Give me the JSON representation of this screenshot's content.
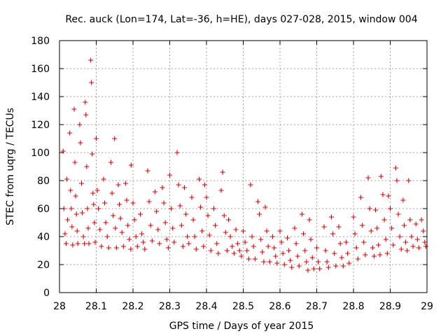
{
  "chart_data": {
    "type": "scatter",
    "title": "Rec. auck (Lon=174, Lat=-36, h=HE), days 027-028, 2015, window 004",
    "xlabel": "GPS time / Days of year 2015",
    "ylabel": "STEC from uqrg / TECUs",
    "xlim": [
      28,
      29
    ],
    "ylim": [
      0,
      180
    ],
    "xticks": [
      "28",
      "28.1",
      "28.2",
      "28.3",
      "28.4",
      "28.5",
      "28.6",
      "28.7",
      "28.8",
      "28.9",
      "29"
    ],
    "yticks": [
      "0",
      "20",
      "40",
      "60",
      "80",
      "100",
      "120",
      "140",
      "160",
      "180"
    ],
    "grid": true,
    "marker": "plus",
    "color": "#e00000",
    "points": [
      [
        28.01,
        101
      ],
      [
        28.012,
        60
      ],
      [
        28.015,
        42
      ],
      [
        28.018,
        35
      ],
      [
        28.02,
        81
      ],
      [
        28.022,
        52
      ],
      [
        28.028,
        114
      ],
      [
        28.03,
        73
      ],
      [
        28.032,
        60
      ],
      [
        28.034,
        47
      ],
      [
        28.036,
        34
      ],
      [
        28.04,
        131
      ],
      [
        28.042,
        93
      ],
      [
        28.044,
        69
      ],
      [
        28.046,
        56
      ],
      [
        28.048,
        44
      ],
      [
        28.05,
        35
      ],
      [
        28.055,
        120
      ],
      [
        28.057,
        107
      ],
      [
        28.06,
        78
      ],
      [
        28.062,
        57
      ],
      [
        28.065,
        40
      ],
      [
        28.068,
        35
      ],
      [
        28.07,
        136
      ],
      [
        28.072,
        127
      ],
      [
        28.074,
        90
      ],
      [
        28.076,
        60
      ],
      [
        28.078,
        46
      ],
      [
        28.08,
        35
      ],
      [
        28.085,
        166
      ],
      [
        28.087,
        150
      ],
      [
        28.089,
        99
      ],
      [
        28.091,
        71
      ],
      [
        28.093,
        63
      ],
      [
        28.095,
        50
      ],
      [
        28.097,
        36
      ],
      [
        28.1,
        110
      ],
      [
        28.103,
        73
      ],
      [
        28.106,
        60
      ],
      [
        28.11,
        45
      ],
      [
        28.114,
        33
      ],
      [
        28.12,
        81
      ],
      [
        28.123,
        64
      ],
      [
        28.126,
        50
      ],
      [
        28.13,
        40
      ],
      [
        28.134,
        32
      ],
      [
        28.14,
        93
      ],
      [
        28.143,
        71
      ],
      [
        28.146,
        55
      ],
      [
        28.15,
        110
      ],
      [
        28.152,
        46
      ],
      [
        28.155,
        32
      ],
      [
        28.16,
        77
      ],
      [
        28.163,
        63
      ],
      [
        28.166,
        53
      ],
      [
        28.17,
        43
      ],
      [
        28.174,
        33
      ],
      [
        28.18,
        78
      ],
      [
        28.183,
        66
      ],
      [
        28.186,
        48
      ],
      [
        28.19,
        38
      ],
      [
        28.194,
        31
      ],
      [
        28.195,
        91
      ],
      [
        28.2,
        64
      ],
      [
        28.204,
        52
      ],
      [
        28.208,
        40
      ],
      [
        28.212,
        33
      ],
      [
        28.22,
        56
      ],
      [
        28.224,
        42
      ],
      [
        28.228,
        36
      ],
      [
        28.232,
        31
      ],
      [
        28.24,
        87
      ],
      [
        28.244,
        65
      ],
      [
        28.248,
        48
      ],
      [
        28.252,
        37
      ],
      [
        28.26,
        72
      ],
      [
        28.264,
        58
      ],
      [
        28.268,
        45
      ],
      [
        28.272,
        35
      ],
      [
        28.28,
        75
      ],
      [
        28.284,
        64
      ],
      [
        28.288,
        50
      ],
      [
        28.292,
        38
      ],
      [
        28.296,
        32
      ],
      [
        28.3,
        84
      ],
      [
        28.304,
        60
      ],
      [
        28.308,
        46
      ],
      [
        28.312,
        36
      ],
      [
        28.32,
        100
      ],
      [
        28.324,
        77
      ],
      [
        28.328,
        62
      ],
      [
        28.332,
        48
      ],
      [
        28.336,
        33
      ],
      [
        28.34,
        75
      ],
      [
        28.344,
        56
      ],
      [
        28.348,
        40
      ],
      [
        28.352,
        35
      ],
      [
        28.36,
        68
      ],
      [
        28.364,
        52
      ],
      [
        28.368,
        40
      ],
      [
        28.372,
        31
      ],
      [
        28.38,
        81
      ],
      [
        28.384,
        61
      ],
      [
        28.388,
        44
      ],
      [
        28.392,
        33
      ],
      [
        28.395,
        77
      ],
      [
        28.4,
        68
      ],
      [
        28.404,
        55
      ],
      [
        28.408,
        41
      ],
      [
        28.412,
        30
      ],
      [
        28.42,
        60
      ],
      [
        28.424,
        48
      ],
      [
        28.428,
        35
      ],
      [
        28.432,
        28
      ],
      [
        28.44,
        73
      ],
      [
        28.444,
        86
      ],
      [
        28.448,
        55
      ],
      [
        28.452,
        43
      ],
      [
        28.456,
        30
      ],
      [
        28.46,
        52
      ],
      [
        28.465,
        40
      ],
      [
        28.47,
        33
      ],
      [
        28.475,
        28
      ],
      [
        28.48,
        45
      ],
      [
        28.485,
        35
      ],
      [
        28.49,
        30
      ],
      [
        28.495,
        26
      ],
      [
        28.5,
        44
      ],
      [
        28.505,
        36
      ],
      [
        28.51,
        30
      ],
      [
        28.515,
        24
      ],
      [
        28.52,
        77
      ],
      [
        28.524,
        40
      ],
      [
        28.528,
        33
      ],
      [
        28.532,
        24
      ],
      [
        28.54,
        65
      ],
      [
        28.544,
        56
      ],
      [
        28.548,
        38
      ],
      [
        28.552,
        29
      ],
      [
        28.556,
        22
      ],
      [
        28.56,
        61
      ],
      [
        28.564,
        44
      ],
      [
        28.568,
        33
      ],
      [
        28.572,
        22
      ],
      [
        28.58,
        40
      ],
      [
        28.584,
        32
      ],
      [
        28.588,
        26
      ],
      [
        28.592,
        21
      ],
      [
        28.6,
        44
      ],
      [
        28.604,
        36
      ],
      [
        28.608,
        28
      ],
      [
        28.612,
        20
      ],
      [
        28.62,
        39
      ],
      [
        28.624,
        30
      ],
      [
        28.628,
        23
      ],
      [
        28.632,
        18
      ],
      [
        28.64,
        46
      ],
      [
        28.644,
        35
      ],
      [
        28.648,
        26
      ],
      [
        28.652,
        19
      ],
      [
        28.66,
        56
      ],
      [
        28.664,
        42
      ],
      [
        28.668,
        30
      ],
      [
        28.672,
        22
      ],
      [
        28.676,
        16
      ],
      [
        28.68,
        52
      ],
      [
        28.684,
        38
      ],
      [
        28.688,
        25
      ],
      [
        28.692,
        17
      ],
      [
        28.7,
        32
      ],
      [
        28.704,
        22
      ],
      [
        28.708,
        17
      ],
      [
        28.72,
        47
      ],
      [
        28.724,
        30
      ],
      [
        28.728,
        22
      ],
      [
        28.732,
        18
      ],
      [
        28.74,
        54
      ],
      [
        28.744,
        42
      ],
      [
        28.748,
        28
      ],
      [
        28.752,
        19
      ],
      [
        28.76,
        47
      ],
      [
        28.764,
        35
      ],
      [
        28.768,
        25
      ],
      [
        28.772,
        19
      ],
      [
        28.78,
        36
      ],
      [
        28.784,
        28
      ],
      [
        28.788,
        21
      ],
      [
        28.8,
        54
      ],
      [
        28.804,
        42
      ],
      [
        28.808,
        32
      ],
      [
        28.812,
        24
      ],
      [
        28.82,
        68
      ],
      [
        28.824,
        48
      ],
      [
        28.828,
        36
      ],
      [
        28.832,
        27
      ],
      [
        28.84,
        82
      ],
      [
        28.844,
        60
      ],
      [
        28.848,
        44
      ],
      [
        28.852,
        32
      ],
      [
        28.856,
        26
      ],
      [
        28.86,
        59
      ],
      [
        28.864,
        46
      ],
      [
        28.868,
        34
      ],
      [
        28.872,
        27
      ],
      [
        28.875,
        83
      ],
      [
        28.88,
        70
      ],
      [
        28.884,
        52
      ],
      [
        28.888,
        38
      ],
      [
        28.892,
        28
      ],
      [
        28.895,
        69
      ],
      [
        28.9,
        60
      ],
      [
        28.904,
        46
      ],
      [
        28.908,
        34
      ],
      [
        28.915,
        89
      ],
      [
        28.918,
        80
      ],
      [
        28.922,
        56
      ],
      [
        28.926,
        40
      ],
      [
        28.93,
        31
      ],
      [
        28.935,
        66
      ],
      [
        28.938,
        48
      ],
      [
        28.942,
        36
      ],
      [
        28.946,
        30
      ],
      [
        28.95,
        80
      ],
      [
        28.954,
        52
      ],
      [
        28.958,
        40
      ],
      [
        28.962,
        33
      ],
      [
        28.97,
        49
      ],
      [
        28.974,
        38
      ],
      [
        28.978,
        32
      ],
      [
        28.985,
        52
      ],
      [
        28.99,
        44
      ],
      [
        28.994,
        36
      ],
      [
        28.997,
        33
      ]
    ]
  }
}
